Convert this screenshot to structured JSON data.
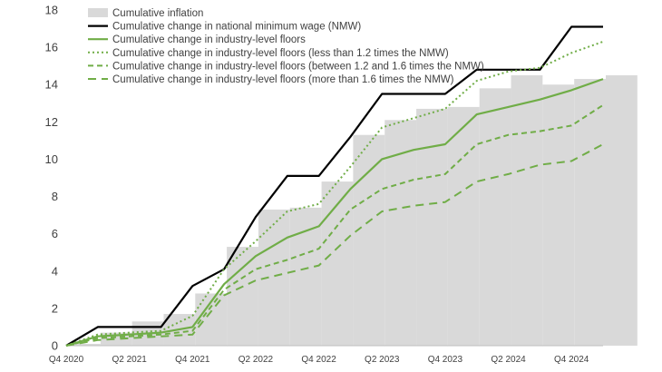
{
  "chart_data": {
    "type": "line",
    "x": [
      "Q4 2020",
      "Q1 2021",
      "Q2 2021",
      "Q3 2021",
      "Q4 2021",
      "Q1 2022",
      "Q2 2022",
      "Q3 2022",
      "Q4 2022",
      "Q1 2023",
      "Q2 2023",
      "Q3 2023",
      "Q4 2023",
      "Q1 2024",
      "Q2 2024",
      "Q3 2024",
      "Q4 2024",
      "Q1 2025"
    ],
    "xticks": [
      "Q4 2020",
      "Q2 2021",
      "Q4 2021",
      "Q2 2022",
      "Q4 2022",
      "Q2 2023",
      "Q4 2023",
      "Q2 2024",
      "Q4 2024"
    ],
    "yticks": [
      0,
      2,
      4,
      6,
      8,
      10,
      12,
      14,
      16,
      18
    ],
    "ylim": [
      0,
      18
    ],
    "grid": false,
    "legend_position": "top-left",
    "colors": {
      "inflation": "#d9d9d9",
      "nmw": "#000000",
      "floors": "#70ad47",
      "axis": "#bfbfbf"
    },
    "inflation": {
      "name": "Cumulative inflation",
      "type": "area",
      "values": [
        0.1,
        0.7,
        1.3,
        1.7,
        2.8,
        5.3,
        7.3,
        7.4,
        8.8,
        11.3,
        12.1,
        12.7,
        12.8,
        13.8,
        14.5,
        14.0,
        14.3,
        14.5
      ]
    },
    "series": [
      {
        "name": "Cumulative change in national minimum wage (NMW)",
        "style": "solid-black",
        "values": [
          0,
          1.0,
          1.0,
          1.0,
          3.2,
          4.1,
          6.9,
          9.1,
          9.1,
          11.2,
          13.5,
          13.5,
          13.5,
          14.8,
          14.8,
          14.8,
          17.1,
          17.1
        ]
      },
      {
        "name": "Cumulative change in industry-level floors",
        "style": "solid-green",
        "values": [
          0,
          0.5,
          0.6,
          0.7,
          1.0,
          3.3,
          4.8,
          5.8,
          6.4,
          8.4,
          10.0,
          10.5,
          10.8,
          12.4,
          12.8,
          13.2,
          13.7,
          14.3
        ]
      },
      {
        "name": "Cumulative change in industry-level floors (less than 1.2 times the NMW)",
        "style": "dotted-green",
        "values": [
          0,
          0.6,
          0.7,
          0.8,
          1.6,
          4.1,
          5.6,
          7.2,
          7.6,
          9.6,
          11.7,
          12.2,
          12.7,
          14.2,
          14.7,
          14.9,
          15.7,
          16.3
        ]
      },
      {
        "name": "Cumulative change in industry-level floors (between 1.2 and 1.6 times the NMW)",
        "style": "dashed-green",
        "values": [
          0,
          0.4,
          0.5,
          0.6,
          0.8,
          3.0,
          4.1,
          4.6,
          5.2,
          7.3,
          8.4,
          8.9,
          9.2,
          10.8,
          11.3,
          11.5,
          11.8,
          12.9
        ]
      },
      {
        "name": "Cumulative change in industry-level floors (more than 1.6 times the NMW)",
        "style": "longdash-green",
        "values": [
          0,
          0.3,
          0.4,
          0.5,
          0.6,
          2.7,
          3.5,
          3.9,
          4.3,
          5.9,
          7.2,
          7.5,
          7.7,
          8.8,
          9.2,
          9.7,
          9.9,
          10.8
        ]
      }
    ]
  }
}
